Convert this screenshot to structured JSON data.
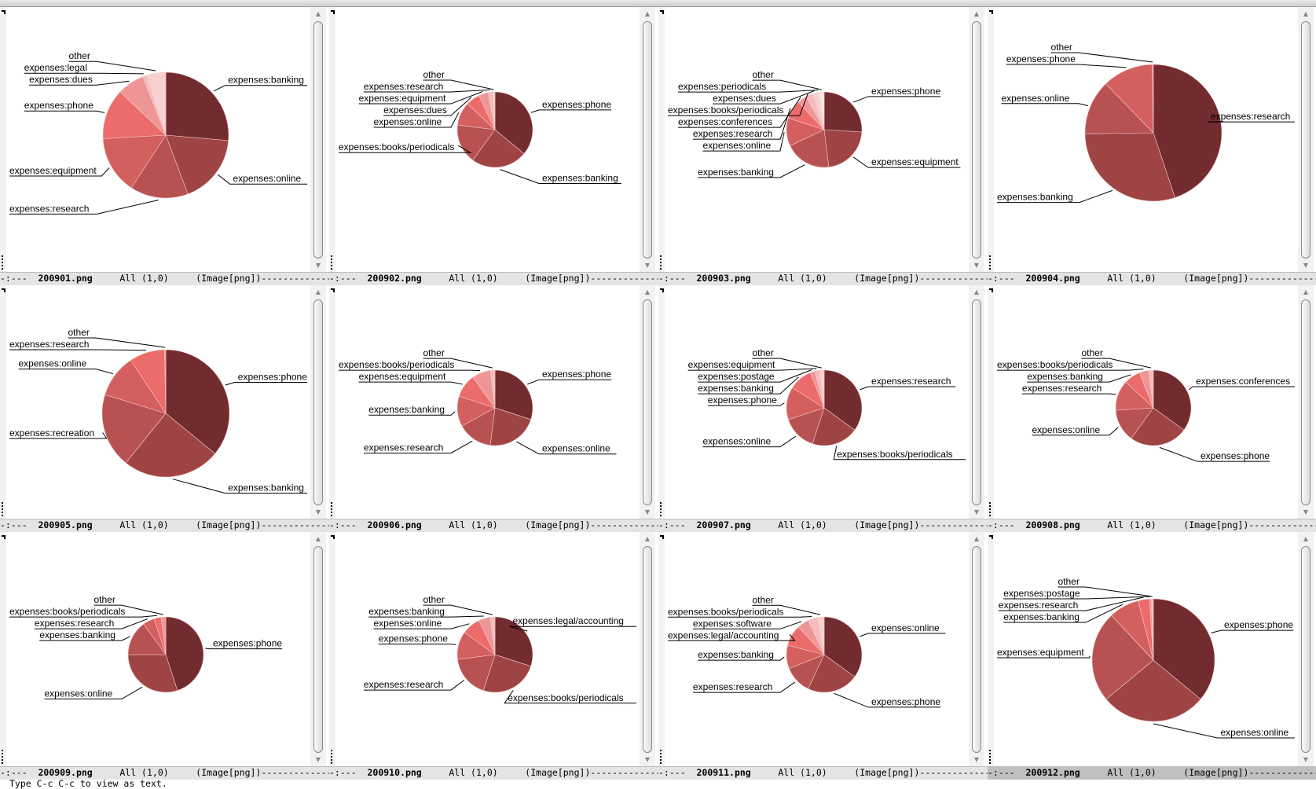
{
  "echo_area": {
    "message": "Type C-c C-c to view as text."
  },
  "modeline": {
    "status": "-:---",
    "position": "All (1,0)",
    "mode": "(Image[png])"
  },
  "panes": [
    {
      "filename": "200901.png"
    },
    {
      "filename": "200902.png"
    },
    {
      "filename": "200903.png"
    },
    {
      "filename": "200904.png"
    },
    {
      "filename": "200905.png"
    },
    {
      "filename": "200906.png"
    },
    {
      "filename": "200907.png"
    },
    {
      "filename": "200908.png"
    },
    {
      "filename": "200909.png"
    },
    {
      "filename": "200910.png"
    },
    {
      "filename": "200911.png"
    },
    {
      "filename": "200912.png"
    }
  ],
  "active_pane": 11,
  "palette": [
    "#722c2f",
    "#9e4444",
    "#b85252",
    "#d35f5f",
    "#ec6b6b",
    "#ee9696",
    "#f4bcbc",
    "#f7d0d0",
    "#f9dede",
    "#fbe8e8"
  ],
  "chart_data": [
    {
      "type": "pie",
      "labels": [
        "expenses:banking",
        "expenses:online",
        "expenses:research",
        "expenses:equipment",
        "expenses:phone",
        "expenses:dues",
        "expenses:legal",
        "other"
      ],
      "values": [
        26.5,
        18,
        15,
        15,
        13,
        7,
        1,
        5
      ]
    },
    {
      "type": "pie",
      "labels": [
        "expenses:phone",
        "expenses:banking",
        "expenses:books/periodicals",
        "expenses:online",
        "expenses:dues",
        "expenses:equipment",
        "expenses:research",
        "other"
      ],
      "values": [
        36,
        24,
        17,
        10,
        6,
        4,
        2,
        1
      ]
    },
    {
      "type": "pie",
      "labels": [
        "expenses:phone",
        "expenses:equipment",
        "expenses:banking",
        "expenses:online",
        "expenses:research",
        "expenses:conferences",
        "expenses:books/periodicals",
        "expenses:dues",
        "expenses:periodicals",
        "other"
      ],
      "values": [
        26,
        22,
        20,
        12,
        8,
        4,
        3,
        2,
        1,
        2
      ]
    },
    {
      "type": "pie",
      "labels": [
        "expenses:research",
        "expenses:banking",
        "expenses:online",
        "expenses:phone",
        "other"
      ],
      "values": [
        45,
        30,
        13,
        12,
        0.3
      ]
    },
    {
      "type": "pie",
      "labels": [
        "expenses:phone",
        "expenses:banking",
        "expenses:recreation",
        "expenses:online",
        "expenses:research",
        "other"
      ],
      "values": [
        36,
        25,
        19,
        11,
        9,
        0.3
      ]
    },
    {
      "type": "pie",
      "labels": [
        "expenses:phone",
        "expenses:online",
        "expenses:research",
        "expenses:banking",
        "expenses:equipment",
        "expenses:books/periodicals",
        "other"
      ],
      "values": [
        30,
        22,
        15,
        13,
        10,
        8,
        2
      ]
    },
    {
      "type": "pie",
      "labels": [
        "expenses:research",
        "expenses:books/periodicals",
        "expenses:online",
        "expenses:phone",
        "expenses:banking",
        "expenses:postage",
        "expenses:equipment",
        "other"
      ],
      "values": [
        35,
        20,
        15,
        14,
        10,
        2,
        2,
        2
      ]
    },
    {
      "type": "pie",
      "labels": [
        "expenses:conferences",
        "expenses:phone",
        "expenses:online",
        "expenses:research",
        "expenses:banking",
        "expenses:books/periodicals",
        "other"
      ],
      "values": [
        35,
        25,
        14,
        13,
        7,
        4,
        2
      ]
    },
    {
      "type": "pie",
      "labels": [
        "expenses:phone",
        "expenses:online",
        "expenses:banking",
        "expenses:research",
        "expenses:books/periodicals",
        "other"
      ],
      "values": [
        45,
        30,
        15,
        5,
        3,
        2
      ]
    },
    {
      "type": "pie",
      "labels": [
        "expenses:legal/accounting",
        "expenses:books/periodicals",
        "expenses:research",
        "expenses:phone",
        "expenses:online",
        "expenses:banking",
        "other"
      ],
      "values": [
        30,
        25,
        18,
        12,
        8,
        5,
        2
      ]
    },
    {
      "type": "pie",
      "labels": [
        "expenses:online",
        "expenses:phone",
        "expenses:research",
        "expenses:banking",
        "expenses:legal/accounting",
        "expenses:software",
        "expenses:books/periodicals",
        "other"
      ],
      "values": [
        35,
        22,
        12,
        10,
        9,
        5,
        4,
        3
      ]
    },
    {
      "type": "pie",
      "labels": [
        "expenses:phone",
        "expenses:online",
        "expenses:equipment",
        "expenses:banking",
        "expenses:research",
        "expenses:postage",
        "other"
      ],
      "values": [
        36,
        28,
        24,
        8,
        3,
        0.5,
        0.5
      ]
    }
  ]
}
